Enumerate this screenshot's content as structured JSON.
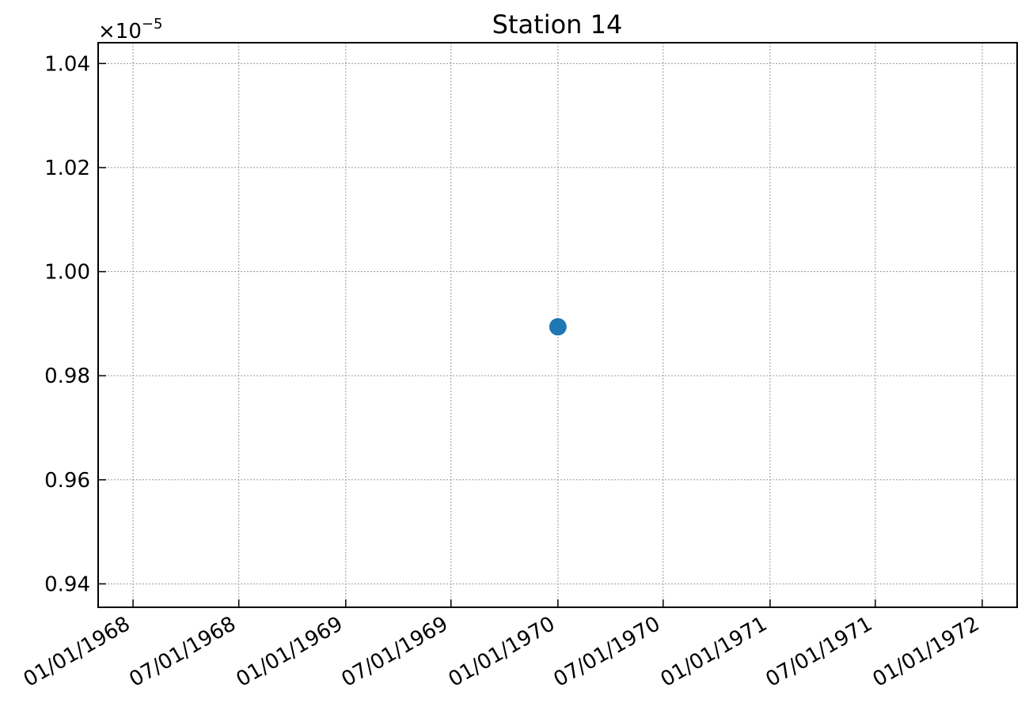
{
  "chart_data": {
    "type": "scatter",
    "title": "Station 14",
    "xlabel": "",
    "ylabel": "",
    "x_axis_type": "date",
    "y_offset_text": {
      "base": "×10",
      "exponent": "−5"
    },
    "xlim": [
      "1967-11-02",
      "1972-03-01"
    ],
    "ylim": [
      0.9355,
      1.044
    ],
    "x_ticks": [
      {
        "date": "1968-01-01",
        "label": "01/01/1968"
      },
      {
        "date": "1968-07-01",
        "label": "07/01/1968"
      },
      {
        "date": "1969-01-01",
        "label": "01/01/1969"
      },
      {
        "date": "1969-07-01",
        "label": "07/01/1969"
      },
      {
        "date": "1970-01-01",
        "label": "01/01/1970"
      },
      {
        "date": "1970-07-01",
        "label": "07/01/1970"
      },
      {
        "date": "1971-01-01",
        "label": "01/01/1971"
      },
      {
        "date": "1971-07-01",
        "label": "07/01/1971"
      },
      {
        "date": "1972-01-01",
        "label": "01/01/1972"
      }
    ],
    "y_ticks": [
      {
        "value": 0.94,
        "label": "0.94"
      },
      {
        "value": 0.96,
        "label": "0.96"
      },
      {
        "value": 0.98,
        "label": "0.98"
      },
      {
        "value": 1.0,
        "label": "1.00"
      },
      {
        "value": 1.02,
        "label": "1.02"
      },
      {
        "value": 1.04,
        "label": "1.04"
      }
    ],
    "grid": true,
    "marker_color": "#1f77b4",
    "points": [
      {
        "x": "1970-01-01",
        "y": 0.9894
      }
    ]
  }
}
